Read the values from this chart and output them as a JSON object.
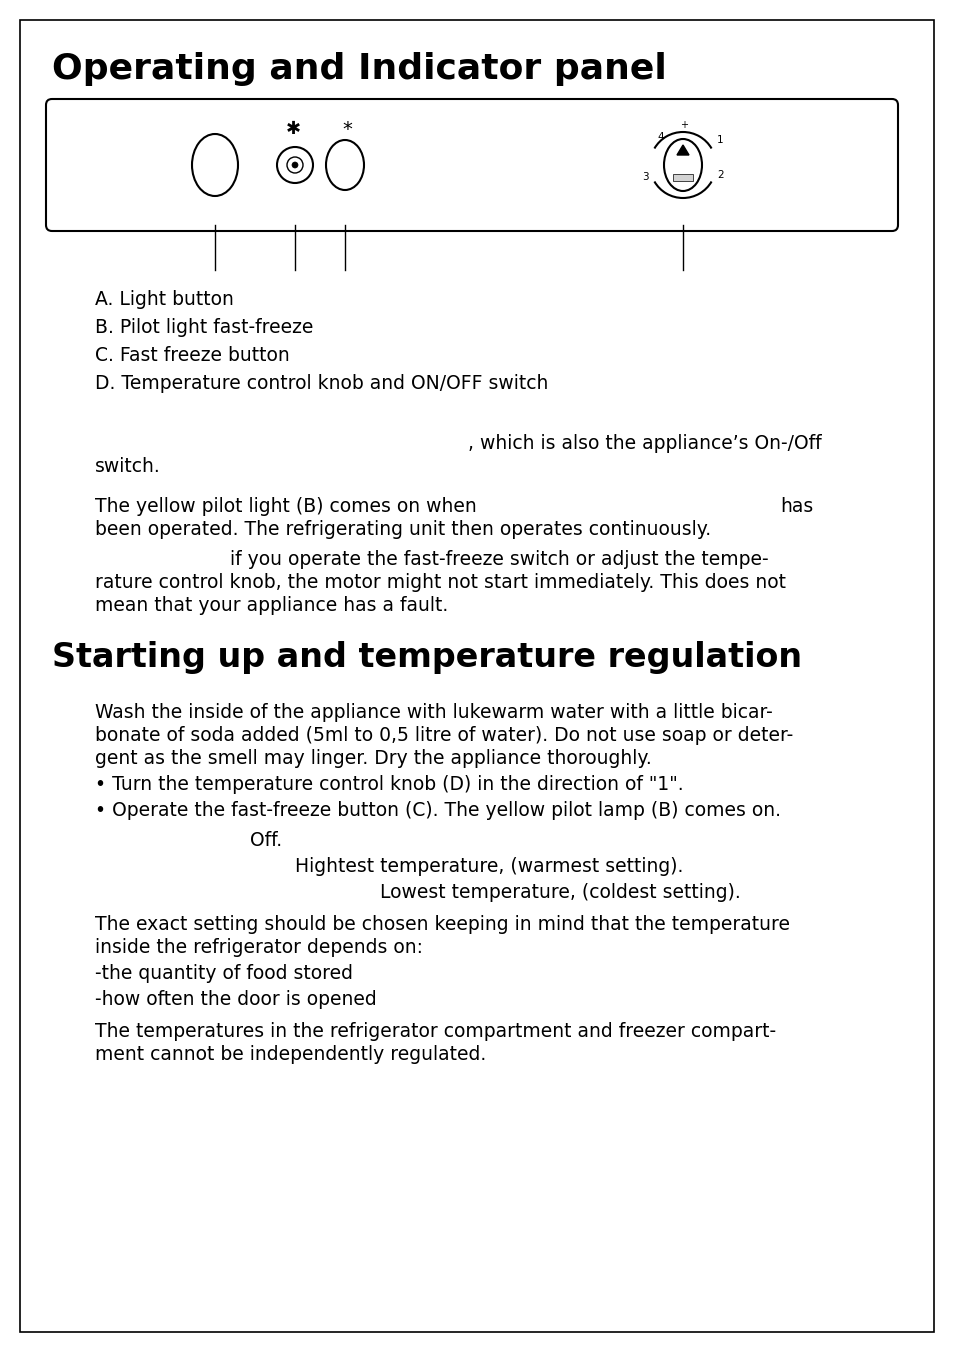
{
  "bg_color": "#ffffff",
  "title1": "Operating and Indicator panel",
  "title2": "Starting up and temperature regulation",
  "items": [
    "A. Light button",
    "B. Pilot light fast-freeze",
    "C. Fast freeze button",
    "D. Temperature control knob and ON/OFF switch"
  ],
  "para1_right": ", which is also the appliance’s On-/Off",
  "para1_left": "switch.",
  "para2a": "The yellow pilot light (B) comes on when",
  "para2b": "has",
  "para2c": "been operated. The refrigerating unit then operates continuously.",
  "para3_indent": "if you operate the fast-freeze switch or adjust the tempe-",
  "para3b": "rature control knob, the motor might not start immediately. This does not",
  "para3c": "mean that your appliance has a fault.",
  "wash": "Wash the inside of the appliance with lukewarm water with a little bicar-",
  "wash2": "bonate of soda added (5ml to 0,5 litre of water). Do not use soap or deter-",
  "wash3": "gent as the smell may linger. Dry the appliance thoroughly.",
  "bullet1": "• Turn the temperature control knob (D) in the direction of \"1\".",
  "bullet2": "• Operate the fast-freeze button (C). The yellow pilot lamp (B) comes on.",
  "off_indent": "Off.",
  "high_indent": "Hightest temperature, (warmest setting).",
  "low_indent": "Lowest temperature, (coldest setting).",
  "exact": "The exact setting should be chosen keeping in mind that the temperature",
  "exact2": "inside the refrigerator depends on:",
  "dash1": "-the quantity of food stored",
  "dash2": "-how often the door is opened",
  "final": "The temperatures in the refrigerator compartment and freezer compart-",
  "final2": "ment cannot be independently regulated."
}
